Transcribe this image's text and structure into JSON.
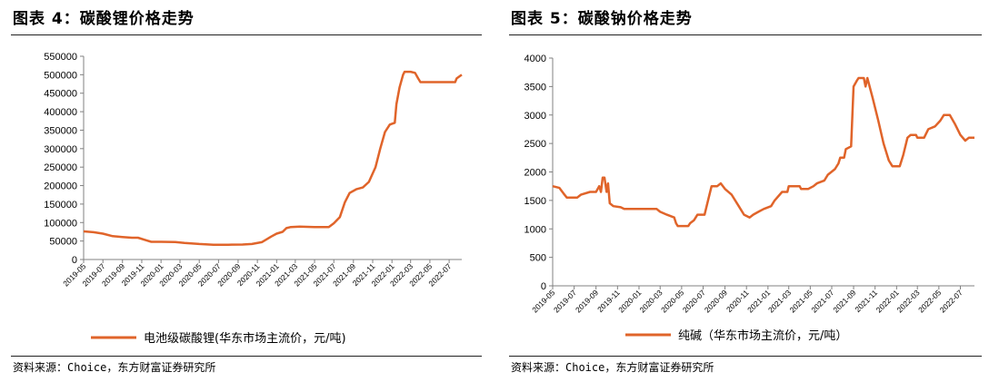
{
  "figures": [
    {
      "title": "图表 4：碳酸锂价格走势",
      "source": "资料来源：Choice，东方财富证券研究所"
    },
    {
      "title": "图表 5：碳酸钠价格走势",
      "source": "资料来源：Choice，东方财富证券研究所"
    }
  ],
  "colors": {
    "line": "#e0642a",
    "axis": "#808080",
    "text": "#000000"
  },
  "chart_data": [
    {
      "type": "line",
      "title": "",
      "xlabel": "",
      "ylabel": "",
      "ylim": [
        0,
        550000
      ],
      "yticks": [
        "0",
        "50000",
        "100000",
        "150000",
        "200000",
        "250000",
        "300000",
        "350000",
        "400000",
        "450000",
        "500000",
        "550000"
      ],
      "xticks": [
        "2019-05",
        "2019-07",
        "2019-09",
        "2019-11",
        "2020-01",
        "2020-03",
        "2020-05",
        "2020-07",
        "2020-09",
        "2020-11",
        "2021-01",
        "2021-03",
        "2021-05",
        "2021-07",
        "2021-09",
        "2021-11",
        "2022-01",
        "2022-03",
        "2022-05",
        "2022-07"
      ],
      "x_range": [
        "2019-05-01",
        "2022-08-10"
      ],
      "grid": false,
      "legend_position": "bottom-center",
      "series": [
        {
          "name": "电池级碳酸锂(华东市场主流价，元/吨)",
          "color": "#e0642a",
          "points": [
            [
              "2019-05-01",
              76000
            ],
            [
              "2019-06-01",
              74000
            ],
            [
              "2019-07-01",
              70000
            ],
            [
              "2019-08-01",
              63000
            ],
            [
              "2019-09-01",
              61000
            ],
            [
              "2019-10-01",
              59000
            ],
            [
              "2019-10-20",
              59000
            ],
            [
              "2019-11-15",
              52000
            ],
            [
              "2019-12-01",
              48000
            ],
            [
              "2020-01-01",
              48000
            ],
            [
              "2020-02-15",
              47500
            ],
            [
              "2020-03-15",
              45000
            ],
            [
              "2020-05-01",
              42000
            ],
            [
              "2020-06-15",
              40000
            ],
            [
              "2020-08-01",
              40000
            ],
            [
              "2020-09-15",
              40500
            ],
            [
              "2020-10-15",
              42000
            ],
            [
              "2020-11-15",
              47000
            ],
            [
              "2020-12-15",
              62000
            ],
            [
              "2021-01-01",
              70000
            ],
            [
              "2021-01-20",
              75000
            ],
            [
              "2021-02-01",
              85000
            ],
            [
              "2021-02-15",
              88000
            ],
            [
              "2021-03-15",
              89000
            ],
            [
              "2021-05-01",
              88000
            ],
            [
              "2021-06-15",
              88000
            ],
            [
              "2021-07-01",
              98000
            ],
            [
              "2021-07-20",
              115000
            ],
            [
              "2021-08-05",
              155000
            ],
            [
              "2021-08-20",
              180000
            ],
            [
              "2021-09-10",
              190000
            ],
            [
              "2021-10-01",
              195000
            ],
            [
              "2021-10-20",
              210000
            ],
            [
              "2021-11-10",
              250000
            ],
            [
              "2021-11-25",
              300000
            ],
            [
              "2021-12-10",
              345000
            ],
            [
              "2021-12-25",
              365000
            ],
            [
              "2022-01-10",
              370000
            ],
            [
              "2022-01-15",
              420000
            ],
            [
              "2022-01-25",
              465000
            ],
            [
              "2022-02-05",
              500000
            ],
            [
              "2022-02-10",
              508000
            ],
            [
              "2022-03-01",
              508000
            ],
            [
              "2022-03-15",
              505000
            ],
            [
              "2022-03-25",
              490000
            ],
            [
              "2022-04-01",
              480000
            ],
            [
              "2022-07-20",
              480000
            ],
            [
              "2022-07-25",
              490000
            ],
            [
              "2022-08-10",
              500000
            ]
          ]
        }
      ]
    },
    {
      "type": "line",
      "title": "",
      "xlabel": "",
      "ylabel": "",
      "ylim": [
        0,
        4000
      ],
      "yticks": [
        "0",
        "500",
        "1000",
        "1500",
        "2000",
        "2500",
        "3000",
        "3500",
        "4000"
      ],
      "xticks": [
        "2019-05",
        "2019-07",
        "2019-09",
        "2019-11",
        "2020-01",
        "2020-03",
        "2020-05",
        "2020-07",
        "2020-09",
        "2020-11",
        "2021-01",
        "2021-03",
        "2021-05",
        "2021-07",
        "2021-09",
        "2021-11",
        "2022-01",
        "2022-03",
        "2022-05",
        "2022-07"
      ],
      "x_range": [
        "2019-05-01",
        "2022-08-10"
      ],
      "grid": false,
      "legend_position": "bottom-center",
      "series": [
        {
          "name": "纯碱（华东市场主流价，元/吨）",
          "color": "#e0642a",
          "points": [
            [
              "2019-05-01",
              1750
            ],
            [
              "2019-05-20",
              1720
            ],
            [
              "2019-06-01",
              1620
            ],
            [
              "2019-06-10",
              1550
            ],
            [
              "2019-07-10",
              1550
            ],
            [
              "2019-07-20",
              1600
            ],
            [
              "2019-08-15",
              1650
            ],
            [
              "2019-09-01",
              1650
            ],
            [
              "2019-09-10",
              1750
            ],
            [
              "2019-09-15",
              1650
            ],
            [
              "2019-09-20",
              1900
            ],
            [
              "2019-09-25",
              1900
            ],
            [
              "2019-10-01",
              1650
            ],
            [
              "2019-10-05",
              1800
            ],
            [
              "2019-10-10",
              1450
            ],
            [
              "2019-10-20",
              1400
            ],
            [
              "2019-11-10",
              1380
            ],
            [
              "2019-11-20",
              1350
            ],
            [
              "2020-02-20",
              1350
            ],
            [
              "2020-03-01",
              1300
            ],
            [
              "2020-03-20",
              1250
            ],
            [
              "2020-04-10",
              1200
            ],
            [
              "2020-04-15",
              1100
            ],
            [
              "2020-04-20",
              1050
            ],
            [
              "2020-05-20",
              1050
            ],
            [
              "2020-05-25",
              1100
            ],
            [
              "2020-06-05",
              1150
            ],
            [
              "2020-06-15",
              1250
            ],
            [
              "2020-07-05",
              1250
            ],
            [
              "2020-07-15",
              1500
            ],
            [
              "2020-07-25",
              1750
            ],
            [
              "2020-08-10",
              1750
            ],
            [
              "2020-08-20",
              1800
            ],
            [
              "2020-09-01",
              1700
            ],
            [
              "2020-09-20",
              1600
            ],
            [
              "2020-10-10",
              1400
            ],
            [
              "2020-10-25",
              1250
            ],
            [
              "2020-11-10",
              1200
            ],
            [
              "2020-11-20",
              1250
            ],
            [
              "2020-12-05",
              1300
            ],
            [
              "2020-12-20",
              1350
            ],
            [
              "2021-01-10",
              1400
            ],
            [
              "2021-01-20",
              1500
            ],
            [
              "2021-02-10",
              1650
            ],
            [
              "2021-02-25",
              1650
            ],
            [
              "2021-03-01",
              1750
            ],
            [
              "2021-04-01",
              1750
            ],
            [
              "2021-04-05",
              1700
            ],
            [
              "2021-04-25",
              1700
            ],
            [
              "2021-05-10",
              1750
            ],
            [
              "2021-05-20",
              1800
            ],
            [
              "2021-06-10",
              1850
            ],
            [
              "2021-06-20",
              1950
            ],
            [
              "2021-07-10",
              2050
            ],
            [
              "2021-07-20",
              2150
            ],
            [
              "2021-07-25",
              2250
            ],
            [
              "2021-08-05",
              2250
            ],
            [
              "2021-08-10",
              2400
            ],
            [
              "2021-08-25",
              2450
            ],
            [
              "2021-09-01",
              3500
            ],
            [
              "2021-09-10",
              3600
            ],
            [
              "2021-09-15",
              3650
            ],
            [
              "2021-09-30",
              3650
            ],
            [
              "2021-10-05",
              3500
            ],
            [
              "2021-10-10",
              3650
            ],
            [
              "2021-10-25",
              3300
            ],
            [
              "2021-11-10",
              2900
            ],
            [
              "2021-11-25",
              2500
            ],
            [
              "2021-12-10",
              2200
            ],
            [
              "2021-12-20",
              2100
            ],
            [
              "2022-01-10",
              2100
            ],
            [
              "2022-01-20",
              2300
            ],
            [
              "2022-02-01",
              2600
            ],
            [
              "2022-02-10",
              2650
            ],
            [
              "2022-02-25",
              2650
            ],
            [
              "2022-03-01",
              2600
            ],
            [
              "2022-03-20",
              2600
            ],
            [
              "2022-04-01",
              2750
            ],
            [
              "2022-04-20",
              2800
            ],
            [
              "2022-05-05",
              2900
            ],
            [
              "2022-05-15",
              3000
            ],
            [
              "2022-06-01",
              3000
            ],
            [
              "2022-06-15",
              2850
            ],
            [
              "2022-07-01",
              2650
            ],
            [
              "2022-07-15",
              2550
            ],
            [
              "2022-07-25",
              2600
            ],
            [
              "2022-08-10",
              2600
            ]
          ]
        }
      ]
    }
  ]
}
